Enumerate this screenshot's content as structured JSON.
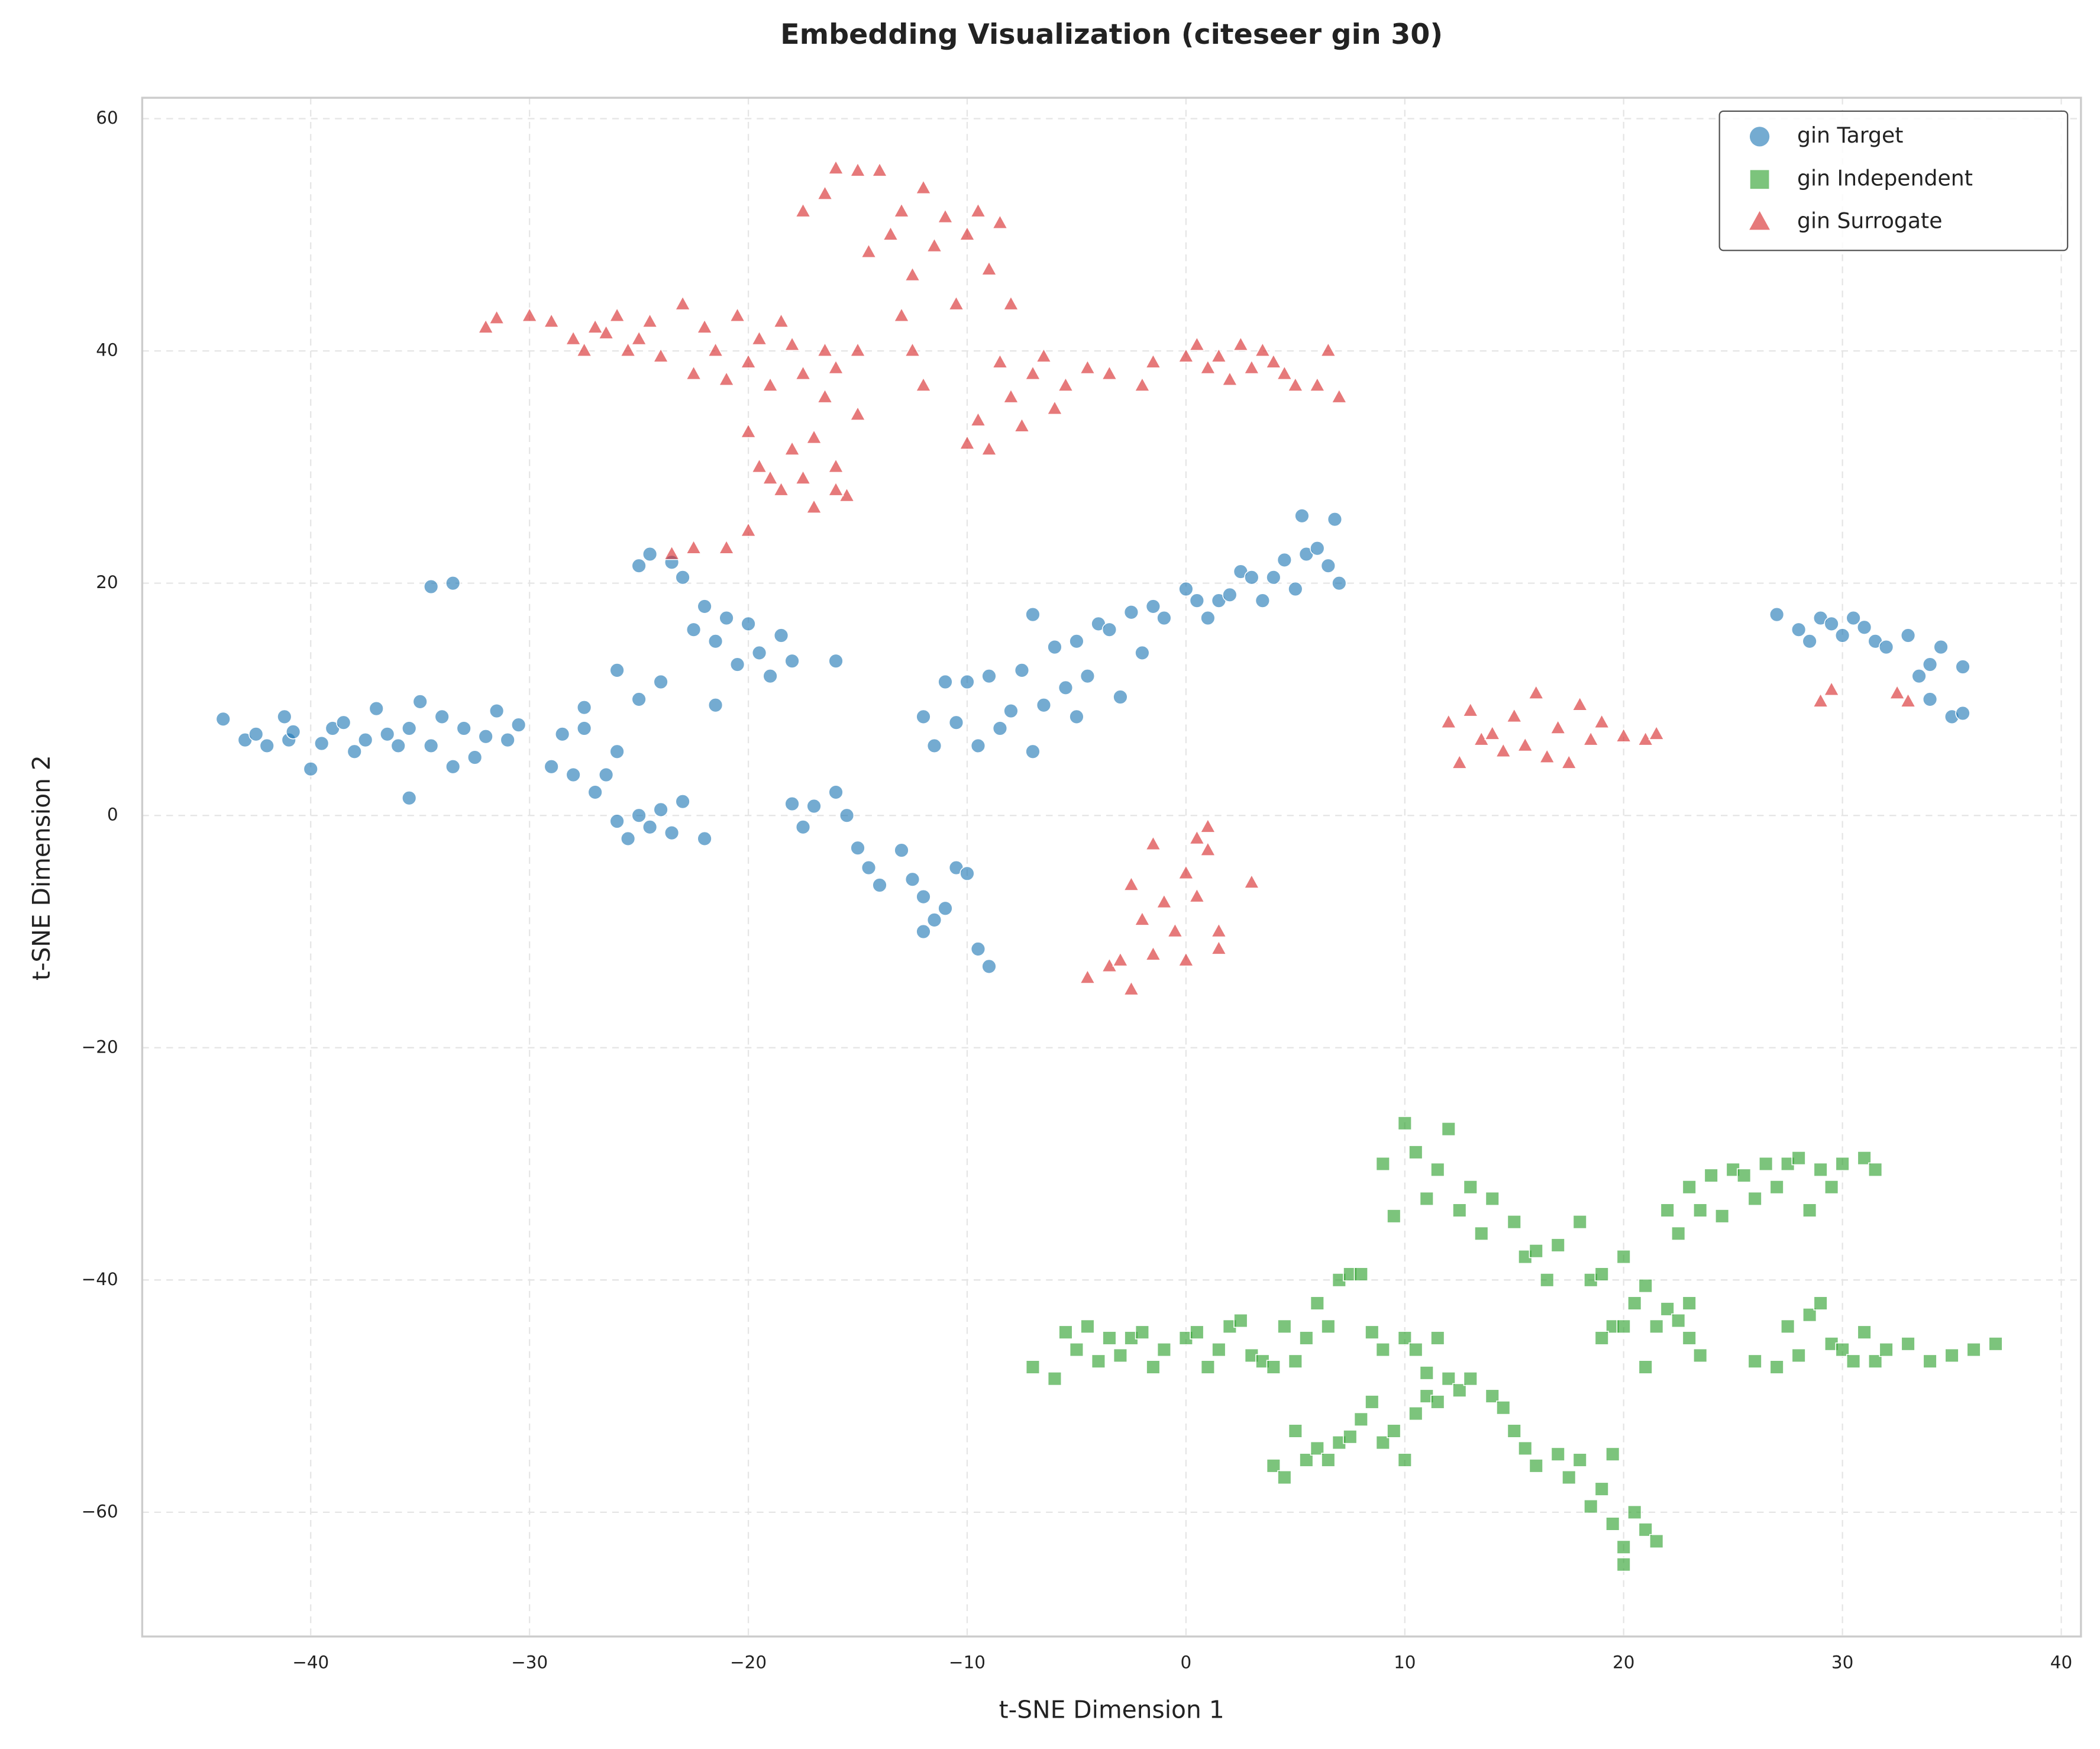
{
  "chart_data": {
    "type": "scatter",
    "title": "Embedding Visualization (citeseer gin 30)",
    "x_label": "t-SNE Dimension 1",
    "y_label": "t-SNE Dimension 2",
    "xlim": [
      -47.7,
      40.9
    ],
    "ylim": [
      -70.7,
      61.8
    ],
    "xticks": [
      {
        "value": -40,
        "label": "−40"
      },
      {
        "value": -30,
        "label": "−30"
      },
      {
        "value": -20,
        "label": "−20"
      },
      {
        "value": -10,
        "label": "−10"
      },
      0,
      10,
      20,
      30,
      40
    ],
    "yticks": [
      {
        "value": -60,
        "label": "−60"
      },
      {
        "value": -40,
        "label": "−40"
      },
      {
        "value": -20,
        "label": "−20"
      },
      0,
      20,
      40,
      60
    ],
    "grid": true,
    "legend_position": "upper right",
    "series": [
      {
        "name": "gin Target",
        "color": "#1f77b4",
        "marker": "circle",
        "x": [
          -44,
          -43,
          -42.5,
          -42,
          -41.2,
          -41,
          -40.8,
          -40,
          -39.5,
          -39,
          -38.5,
          -38,
          -37.5,
          -37,
          -36.5,
          -36,
          -35.5,
          -35,
          -34.5,
          -34,
          -33.5,
          -33,
          -32.5,
          -32,
          -31.5,
          -31,
          -30.5,
          -35.5,
          -34.5,
          -33.5,
          -29,
          -28.5,
          -28,
          -27.5,
          -27,
          -26.5,
          -26,
          -27.5,
          -26,
          -25.5,
          -25,
          -24.5,
          -24,
          -23.5,
          -23,
          -22,
          -26,
          -25,
          -24,
          -25,
          -24.5,
          -23.5,
          -23,
          -22.5,
          -22,
          -21.5,
          -21,
          -20.5,
          -20,
          -19.5,
          -19,
          -18.5,
          -18,
          -21.5,
          -16,
          -18,
          -17.5,
          -17,
          -16,
          -15.5,
          -15,
          -14.5,
          -14,
          -13,
          -12.5,
          -12,
          -11.5,
          -11,
          -10.5,
          -10,
          -9.5,
          -9,
          -12,
          -12,
          -11.5,
          -11,
          -10.5,
          -10,
          -9.5,
          -9,
          -8.5,
          -8,
          -7.5,
          -7,
          -7,
          -6.5,
          -6,
          -5.5,
          -5,
          -5,
          -4.5,
          -4,
          -3.5,
          -3,
          -2.5,
          -2,
          -1.5,
          -1,
          0,
          0.5,
          1,
          1.5,
          2,
          2.5,
          3,
          3.5,
          4,
          4.5,
          5,
          5.5,
          6,
          6.5,
          7,
          5.3,
          6.8,
          27,
          28,
          28.5,
          29,
          29.5,
          30,
          30.5,
          31,
          31.5,
          32,
          33,
          33.5,
          34,
          34.5,
          35,
          35.5,
          34,
          35.5
        ],
        "values": [
          8.3,
          6.5,
          7,
          6,
          8.5,
          6.5,
          7.2,
          4,
          6.2,
          7.5,
          8,
          5.5,
          6.5,
          9.2,
          7,
          6,
          7.5,
          9.8,
          6,
          8.5,
          4.2,
          7.5,
          5,
          6.8,
          9,
          6.5,
          7.8,
          1.5,
          19.7,
          20,
          4.2,
          7,
          3.5,
          7.5,
          2,
          3.5,
          5.5,
          9.3,
          -0.5,
          -2,
          0,
          -1,
          0.5,
          -1.5,
          1.2,
          -2,
          12.5,
          10,
          11.5,
          21.5,
          22.5,
          21.8,
          20.5,
          16,
          18,
          15,
          17,
          13,
          16.5,
          14,
          12,
          15.5,
          13.3,
          9.5,
          13.3,
          1,
          -1,
          0.8,
          2,
          0,
          -2.8,
          -4.5,
          -6,
          -3,
          -5.5,
          -7,
          -9,
          -8,
          -4.5,
          -5,
          -11.5,
          -13,
          -10,
          8.5,
          6,
          11.5,
          8,
          11.5,
          6,
          12,
          7.5,
          9,
          12.5,
          17.3,
          5.5,
          9.5,
          14.5,
          11,
          8.5,
          15,
          12,
          16.5,
          16,
          10.2,
          17.5,
          14,
          18,
          17,
          19.5,
          18.5,
          17,
          18.5,
          19,
          21,
          20.5,
          18.5,
          20.5,
          22,
          19.5,
          22.5,
          23,
          21.5,
          20,
          25.8,
          25.5,
          17.3,
          16,
          15,
          17,
          16.5,
          15.5,
          17,
          16.2,
          15,
          14.5,
          15.5,
          12,
          13,
          14.5,
          8.5,
          12.8,
          10,
          8.8
        ]
      },
      {
        "name": "gin Independent",
        "color": "#2ca02c",
        "marker": "square",
        "x": [
          -7,
          -6,
          -5.5,
          -5,
          -4.5,
          -4,
          -3.5,
          -3,
          -2.5,
          -2,
          -1.5,
          -1,
          0,
          0.5,
          1,
          1.5,
          2,
          2.5,
          3,
          3.5,
          4,
          4.5,
          5,
          5.5,
          6,
          6.5,
          7,
          7.5,
          8,
          8.5,
          9,
          10,
          10.5,
          11,
          11.5,
          4,
          4.5,
          5,
          5.5,
          6,
          6.5,
          7,
          7.5,
          8,
          8.5,
          9,
          9.5,
          10,
          10.5,
          11,
          11.5,
          12,
          12.5,
          13,
          14,
          14.5,
          15,
          15.5,
          16,
          17,
          17.5,
          18,
          18.5,
          19,
          19.5,
          20,
          20.5,
          21,
          21.5,
          20,
          19.5,
          9,
          9.5,
          10,
          10.5,
          11,
          11.5,
          12,
          12.5,
          13,
          13.5,
          14,
          15,
          15.5,
          16,
          16.5,
          17,
          18,
          18.5,
          19,
          19.5,
          20,
          20.5,
          21,
          21.5,
          22,
          22.5,
          23,
          23.5,
          22,
          22.5,
          23,
          23.5,
          24,
          24.5,
          25,
          25.5,
          26,
          26.5,
          27,
          27.5,
          28,
          28.5,
          29,
          29.5,
          30,
          31,
          31.5,
          26,
          27,
          27.5,
          28,
          28.5,
          29,
          29.5,
          30,
          30.5,
          31,
          31.5,
          32,
          33,
          34,
          35,
          36,
          37,
          19,
          20,
          21,
          23
        ],
        "values": [
          -47.5,
          -48.5,
          -44.5,
          -46,
          -44,
          -47,
          -45,
          -46.5,
          -45,
          -44.5,
          -47.5,
          -46,
          -45,
          -44.5,
          -47.5,
          -46,
          -44,
          -43.5,
          -46.5,
          -47,
          -47.5,
          -44,
          -47,
          -45,
          -42,
          -44,
          -40,
          -39.5,
          -39.5,
          -44.5,
          -46,
          -45,
          -46,
          -48,
          -45,
          -56,
          -57,
          -53,
          -55.5,
          -54.5,
          -55.5,
          -54,
          -53.5,
          -52,
          -50.5,
          -54,
          -53,
          -55.5,
          -51.5,
          -50,
          -50.5,
          -48.5,
          -49.5,
          -48.5,
          -50,
          -51,
          -53,
          -54.5,
          -56,
          -55,
          -57,
          -55.5,
          -59.5,
          -58,
          -61,
          -63,
          -60,
          -61.5,
          -62.5,
          -64.5,
          -55,
          -30,
          -34.5,
          -26.5,
          -29,
          -33,
          -30.5,
          -27,
          -34,
          -32,
          -36,
          -33,
          -35,
          -38,
          -37.5,
          -40,
          -37,
          -35,
          -40,
          -39.5,
          -44,
          -38,
          -42,
          -40.5,
          -44,
          -42.5,
          -43.5,
          -45,
          -46.5,
          -34,
          -36,
          -32,
          -34,
          -31,
          -34.5,
          -30.5,
          -31,
          -33,
          -30,
          -32,
          -30,
          -29.5,
          -34,
          -30.5,
          -32,
          -30,
          -29.5,
          -30.5,
          -47,
          -47.5,
          -44,
          -46.5,
          -43,
          -42,
          -45.5,
          -46,
          -47,
          -44.5,
          -47,
          -46,
          -45.5,
          -47,
          -46.5,
          -46,
          -45.5,
          -45,
          -44,
          -47.5,
          -42
        ]
      },
      {
        "name": "gin Surrogate",
        "color": "#d62728",
        "marker": "triangle",
        "x": [
          -32,
          -31.5,
          -30,
          -29,
          -28,
          -27.5,
          -27,
          -26.5,
          -26,
          -25.5,
          -25,
          -24.5,
          -24,
          -23,
          -22.5,
          -22,
          -21.5,
          -21,
          -20.5,
          -20,
          -19.5,
          -19,
          -18.5,
          -18,
          -17.5,
          -16.5,
          -16,
          -15,
          -20,
          -19.5,
          -19,
          -18.5,
          -18,
          -17.5,
          -17,
          -16.5,
          -16,
          -15.5,
          -15,
          -16,
          -17,
          -17.5,
          -16.5,
          -16,
          -15,
          -14,
          -14.5,
          -13.5,
          -13,
          -12.5,
          -12,
          -11.5,
          -11,
          -10.5,
          -10,
          -9.5,
          -9,
          -8.5,
          -8,
          -12.5,
          -12,
          -13,
          -10,
          -9.5,
          -9,
          -8.5,
          -8,
          -7.5,
          -7,
          -6.5,
          -6,
          -5.5,
          -4.5,
          -3.5,
          -2,
          -1.5,
          0,
          0.5,
          1,
          1.5,
          2,
          2.5,
          3,
          3.5,
          4,
          4.5,
          5,
          6,
          6.5,
          7,
          -23.5,
          -22.5,
          -21,
          -20,
          -4.5,
          -3.5,
          -3,
          -2.5,
          -2.5,
          -2,
          -1.5,
          -1.5,
          -1,
          -0.5,
          0,
          0,
          0.5,
          0.5,
          1,
          1,
          1.5,
          1.5,
          3,
          12,
          12.5,
          13,
          13.5,
          14,
          14.5,
          15,
          15.5,
          16,
          16.5,
          17,
          17.5,
          18,
          18.5,
          19,
          20,
          21,
          21.5,
          29,
          29.5,
          32.5,
          33
        ],
        "values": [
          42,
          42.8,
          43,
          42.5,
          41,
          40,
          42,
          41.5,
          43,
          40,
          41,
          42.5,
          39.5,
          44,
          38,
          42,
          40,
          37.5,
          43,
          39,
          41,
          37,
          42.5,
          40.5,
          38,
          40,
          38.5,
          40,
          33,
          30,
          29,
          28,
          31.5,
          29,
          32.5,
          36,
          30,
          27.5,
          34.5,
          28,
          26.5,
          52,
          53.5,
          55.7,
          55.5,
          55.5,
          48.5,
          50,
          52,
          46.5,
          54,
          49,
          51.5,
          44,
          50,
          52,
          47,
          51,
          44,
          40,
          37,
          43,
          32,
          34,
          31.5,
          39,
          36,
          33.5,
          38,
          39.5,
          35,
          37,
          38.5,
          38,
          37,
          39,
          39.5,
          40.5,
          38.5,
          39.5,
          37.5,
          40.5,
          38.5,
          40,
          39,
          38,
          37,
          37,
          40,
          36,
          22.5,
          23,
          23,
          24.5,
          -14,
          -13,
          -12.5,
          -15,
          -6,
          -9,
          -2.5,
          -12,
          -7.5,
          -10,
          -5,
          -12.5,
          -2,
          -7,
          -1,
          -3,
          -10,
          -11.5,
          -5.8,
          8,
          4.5,
          9,
          6.5,
          7,
          5.5,
          8.5,
          6,
          10.5,
          5,
          7.5,
          4.5,
          9.5,
          6.5,
          8,
          6.8,
          6.5,
          7,
          9.8,
          10.8,
          10.5,
          9.8
        ]
      }
    ]
  }
}
